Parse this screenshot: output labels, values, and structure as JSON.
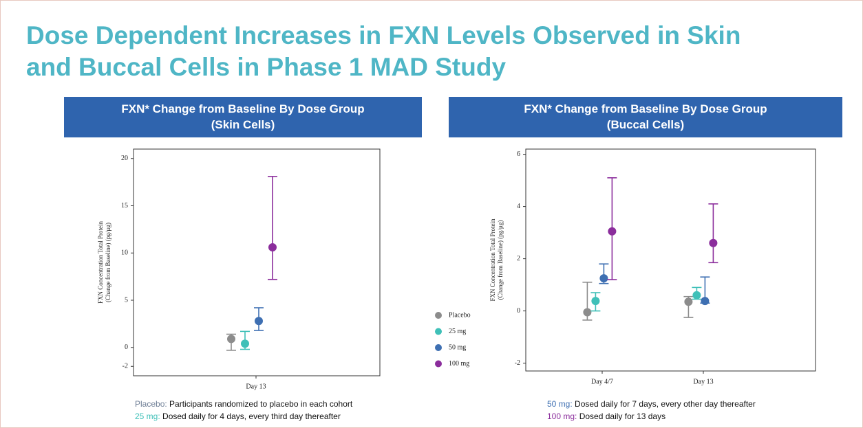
{
  "title": [
    "Dose Dependent Increases in FXN Levels Observed in Skin",
    "and Buccal Cells in Phase 1 MAD Study"
  ],
  "legend": [
    {
      "name": "Placebo",
      "color": "#8c8c8c"
    },
    {
      "name": "25 mg",
      "color": "#3fc0b8"
    },
    {
      "name": "50 mg",
      "color": "#3e6fb2"
    },
    {
      "name": "100 mg",
      "color": "#8b2d9c"
    }
  ],
  "chart_data": [
    {
      "type": "errorbar",
      "header": [
        "FXN* Change from Baseline By Dose Group",
        "(Skin Cells)"
      ],
      "ylabel": [
        "FXN Concentration Total Protein",
        "(Change from Baseline) (pg/µg)"
      ],
      "categories": [
        "Day 13"
      ],
      "ylim": [
        -3,
        21
      ],
      "yticks": [
        -2,
        0,
        5,
        10,
        15,
        20
      ],
      "series": [
        {
          "values": [
            0.9
          ],
          "lower": [
            -0.3
          ],
          "upper": [
            1.4
          ]
        },
        {
          "values": [
            0.4
          ],
          "lower": [
            -0.2
          ],
          "upper": [
            1.7
          ]
        },
        {
          "values": [
            2.8
          ],
          "lower": [
            1.8
          ],
          "upper": [
            4.2
          ]
        },
        {
          "values": [
            10.6
          ],
          "lower": [
            7.2
          ],
          "upper": [
            18.1
          ]
        }
      ],
      "notes": [
        {
          "label": "Placebo:",
          "text": "Participants randomized to placebo in each cohort",
          "color": "#6f7f96"
        },
        {
          "label": "25 mg:",
          "text": "Dosed daily for 4 days, every third day thereafter",
          "color": "#3fc0b8"
        }
      ]
    },
    {
      "type": "errorbar",
      "header": [
        "FXN* Change from Baseline By Dose Group",
        "(Buccal Cells)"
      ],
      "ylabel": [
        "FXN Concentration Total Protein",
        "(Change from Baseline) (pg/µg)"
      ],
      "categories": [
        "Day 4/7",
        "Day 13"
      ],
      "ylim": [
        -2.3,
        6.2
      ],
      "yticks": [
        -2,
        0,
        2,
        4,
        6
      ],
      "series": [
        {
          "values": [
            -0.05,
            0.35
          ],
          "lower": [
            -0.35,
            -0.25
          ],
          "upper": [
            1.1,
            0.55
          ]
        },
        {
          "values": [
            0.38,
            0.6
          ],
          "lower": [
            0.0,
            0.45
          ],
          "upper": [
            0.7,
            0.9
          ]
        },
        {
          "values": [
            1.25,
            0.38
          ],
          "lower": [
            1.05,
            0.3
          ],
          "upper": [
            1.8,
            1.3
          ]
        },
        {
          "values": [
            3.05,
            2.6
          ],
          "lower": [
            1.2,
            1.85
          ],
          "upper": [
            5.1,
            4.1
          ]
        }
      ],
      "notes": [
        {
          "label": "50 mg:",
          "text": "Dosed daily for 7 days, every other day thereafter",
          "color": "#3e6fb2"
        },
        {
          "label": "100 mg:",
          "text": "Dosed daily for 13 days",
          "color": "#8b2d9c"
        }
      ]
    }
  ]
}
